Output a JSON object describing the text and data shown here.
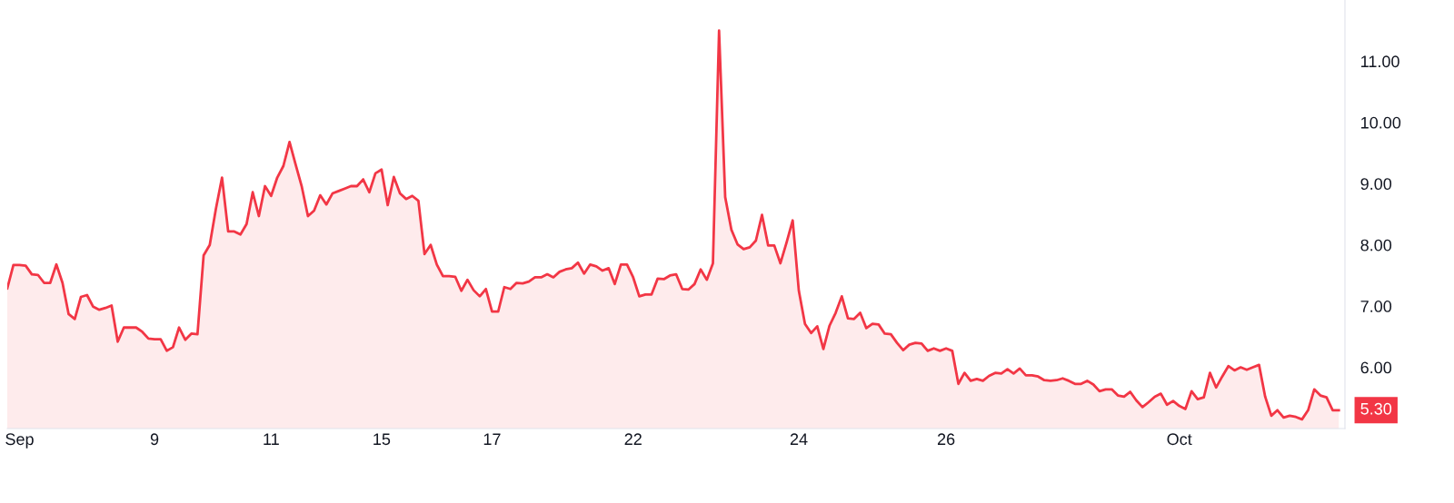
{
  "chart_data": {
    "type": "area",
    "color": "#f23645",
    "categories": [
      null,
      null,
      "Sep",
      null,
      null,
      null,
      null,
      null,
      null,
      null,
      null,
      null,
      null,
      null,
      null,
      null,
      null,
      null,
      null,
      null,
      null,
      null,
      null,
      null,
      "9",
      null,
      null,
      null,
      null,
      null,
      null,
      null,
      null,
      null,
      null,
      null,
      null,
      null,
      null,
      null,
      null,
      null,
      null,
      "11",
      null,
      null,
      null,
      null,
      null,
      null,
      null,
      null,
      null,
      null,
      null,
      null,
      null,
      null,
      null,
      null,
      null,
      "15",
      null,
      null,
      null,
      null,
      null,
      null,
      null,
      null,
      null,
      null,
      null,
      null,
      null,
      null,
      null,
      null,
      null,
      "17",
      null,
      null,
      null,
      null,
      null,
      null,
      null,
      null,
      null,
      null,
      null,
      null,
      null,
      null,
      null,
      null,
      null,
      null,
      null,
      null,
      null,
      null,
      "22",
      null,
      null,
      null,
      null,
      null,
      null,
      null,
      null,
      null,
      null,
      null,
      null,
      null,
      null,
      null,
      null,
      null,
      null,
      null,
      null,
      null,
      null,
      null,
      null,
      null,
      null,
      "24",
      null,
      null,
      null,
      null,
      null,
      null,
      null,
      null,
      null,
      null,
      null,
      null,
      null,
      null,
      null,
      null,
      null,
      null,
      null,
      null,
      null,
      null,
      null,
      "26",
      null,
      null,
      null,
      null,
      null,
      null,
      null,
      null,
      null,
      null,
      null,
      null,
      null,
      null,
      null,
      null,
      null,
      null,
      null,
      null,
      null,
      null,
      null,
      null,
      null,
      null,
      null,
      null,
      null,
      null,
      null,
      null,
      null,
      null,
      null,
      null,
      null,
      "Oct",
      null,
      null,
      null,
      null,
      null,
      null,
      null,
      null,
      null,
      null,
      null,
      null,
      null,
      null,
      null,
      null,
      null,
      null,
      null,
      null,
      null,
      null,
      null,
      null,
      null,
      null
    ],
    "values": [
      7.29,
      7.67,
      7.67,
      7.66,
      7.52,
      7.51,
      7.38,
      7.38,
      7.68,
      7.38,
      6.87,
      6.79,
      7.15,
      7.18,
      6.99,
      6.94,
      6.97,
      7.01,
      6.42,
      6.65,
      6.65,
      6.65,
      6.58,
      6.47,
      6.46,
      6.46,
      6.27,
      6.33,
      6.65,
      6.45,
      6.55,
      6.54,
      7.83,
      8.0,
      8.59,
      9.1,
      8.22,
      8.22,
      8.17,
      8.34,
      8.86,
      8.47,
      8.96,
      8.8,
      9.1,
      9.29,
      9.68,
      9.31,
      8.95,
      8.47,
      8.56,
      8.81,
      8.66,
      8.84,
      8.88,
      8.92,
      8.96,
      8.96,
      9.07,
      8.86,
      9.17,
      9.23,
      8.65,
      9.11,
      8.84,
      8.75,
      8.8,
      8.72,
      7.85,
      8.0,
      7.68,
      7.49,
      7.49,
      7.48,
      7.25,
      7.43,
      7.26,
      7.16,
      7.28,
      6.91,
      6.91,
      7.31,
      7.28,
      7.38,
      7.37,
      7.4,
      7.47,
      7.47,
      7.52,
      7.47,
      7.56,
      7.6,
      7.62,
      7.71,
      7.53,
      7.68,
      7.65,
      7.58,
      7.62,
      7.36,
      7.68,
      7.68,
      7.47,
      7.16,
      7.19,
      7.19,
      7.45,
      7.44,
      7.5,
      7.52,
      7.28,
      7.27,
      7.36,
      7.6,
      7.43,
      7.7,
      11.5,
      8.78,
      8.25,
      8.01,
      7.93,
      7.96,
      8.07,
      8.49,
      7.99,
      7.99,
      7.7,
      8.04,
      8.4,
      7.25,
      6.71,
      6.56,
      6.67,
      6.3,
      6.68,
      6.89,
      7.16,
      6.8,
      6.79,
      6.89,
      6.64,
      6.71,
      6.7,
      6.55,
      6.54,
      6.4,
      6.28,
      6.37,
      6.4,
      6.39,
      6.27,
      6.31,
      6.27,
      6.31,
      6.27,
      5.73,
      5.91,
      5.78,
      5.81,
      5.78,
      5.86,
      5.91,
      5.9,
      5.97,
      5.9,
      5.98,
      5.87,
      5.87,
      5.85,
      5.79,
      5.78,
      5.79,
      5.82,
      5.78,
      5.73,
      5.73,
      5.78,
      5.72,
      5.61,
      5.64,
      5.64,
      5.54,
      5.52,
      5.6,
      5.46,
      5.35,
      5.43,
      5.52,
      5.57,
      5.39,
      5.45,
      5.37,
      5.32,
      5.61,
      5.48,
      5.51,
      5.91,
      5.67,
      5.85,
      6.02,
      5.95,
      6.0,
      5.96,
      6.0,
      6.04,
      5.52,
      5.21,
      5.3,
      5.18,
      5.21,
      5.19,
      5.15,
      5.3,
      5.64,
      5.54,
      5.51,
      5.3,
      5.3
    ],
    "ylim": [
      5.0,
      12.0
    ],
    "yticks": [
      {
        "value": 6,
        "label": "6.00"
      },
      {
        "value": 7,
        "label": "7.00"
      },
      {
        "value": 8,
        "label": "8.00"
      },
      {
        "value": 9,
        "label": "9.00"
      },
      {
        "value": 10,
        "label": "10.00"
      },
      {
        "value": 11,
        "label": "11.00"
      }
    ],
    "annotations": [
      "5.30"
    ],
    "grid": false
  }
}
